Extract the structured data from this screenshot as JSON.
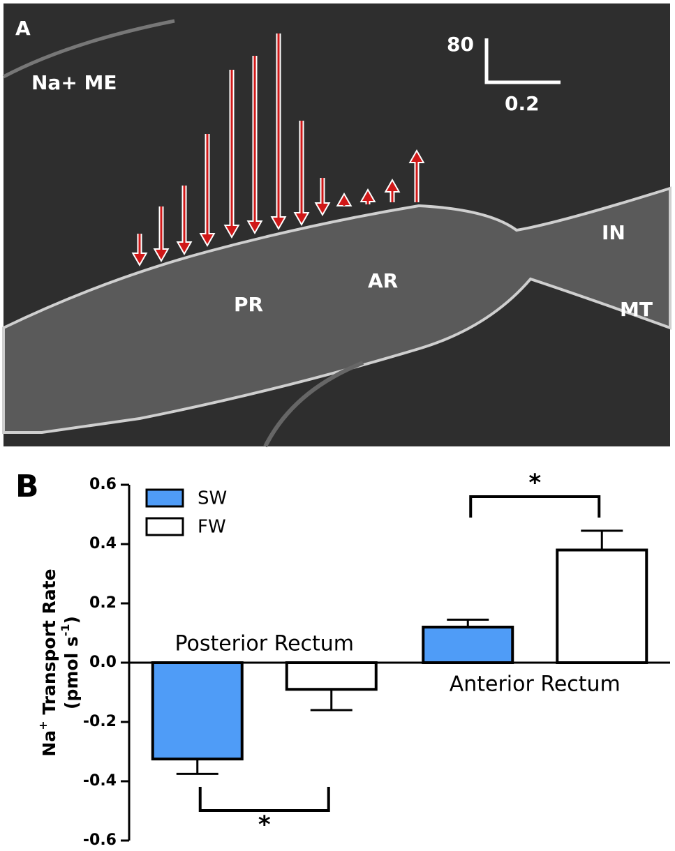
{
  "micrograph": {
    "panel_label": "A",
    "labels": {
      "na_me": "Na+ ME",
      "in": "IN",
      "mt": "MT",
      "pr": "PR",
      "ar": "AR"
    },
    "scale_bar": {
      "vertical": "80",
      "horizontal": "0.2"
    }
  },
  "chart_data": {
    "type": "bar",
    "panel_label": "B",
    "categories": [
      "Posterior Rectum",
      "Anterior Rectum"
    ],
    "series": [
      {
        "name": "SW",
        "color": "#4f9cf7",
        "values": [
          -0.325,
          0.12
        ],
        "errors": [
          0.05,
          0.025
        ]
      },
      {
        "name": "FW",
        "color": "#ffffff",
        "values": [
          -0.09,
          0.38
        ],
        "errors": [
          0.07,
          0.065
        ]
      }
    ],
    "ylabel": {
      "line1": [
        "Na",
        "+",
        " Transport Rate"
      ],
      "line2": [
        "(pmol s",
        "-1",
        ")"
      ]
    },
    "ylim": [
      -0.6,
      0.6
    ],
    "yticks": [
      0.6,
      0.4,
      0.2,
      {
        "value": 0,
        "label": "0.0"
      },
      -0.2,
      -0.4,
      -0.6
    ],
    "annotations": [
      "*",
      "*"
    ],
    "legend": "top-left"
  }
}
